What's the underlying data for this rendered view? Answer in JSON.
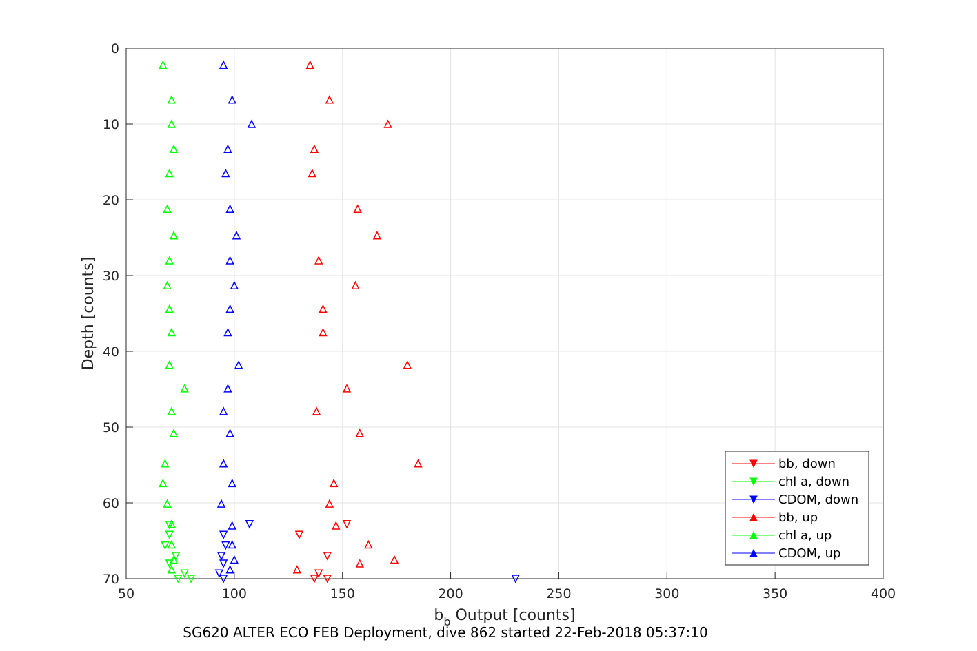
{
  "caption": "SG620 ALTER ECO FEB Deployment, dive 862 started 22-Feb-2018 05:37:10",
  "chart_data": {
    "type": "scatter",
    "xlabel_main": "b",
    "xlabel_sub": "b",
    "xlabel_rest": " Output [counts]",
    "ylabel": "Depth [counts]",
    "xlim": [
      50,
      400
    ],
    "ylim": [
      0,
      70
    ],
    "y_reversed": true,
    "grid": true,
    "legend_position": "bottom-right",
    "x_ticks": [
      "50",
      "100",
      "150",
      "200",
      "250",
      "300",
      "350",
      "400"
    ],
    "y_ticks": [
      "0",
      "10",
      "20",
      "30",
      "40",
      "50",
      "60",
      "70"
    ],
    "series": [
      {
        "name": "bb, down",
        "color": "#ff0000",
        "marker": "triangle-down",
        "points": [
          [
            152,
            62.8
          ],
          [
            130,
            64.2
          ],
          [
            143,
            67
          ],
          [
            139,
            69.3
          ],
          [
            137,
            70
          ],
          [
            143,
            70
          ]
        ]
      },
      {
        "name": "chl a, down",
        "color": "#00ff00",
        "marker": "triangle-down",
        "points": [
          [
            70,
            62.9
          ],
          [
            70,
            64.2
          ],
          [
            68,
            65.6
          ],
          [
            73,
            67
          ],
          [
            70,
            68
          ],
          [
            77,
            69.3
          ],
          [
            74,
            70
          ],
          [
            80,
            70
          ]
        ]
      },
      {
        "name": "CDOM, down",
        "color": "#0000ff",
        "marker": "triangle-down",
        "points": [
          [
            107,
            62.8
          ],
          [
            95,
            64.2
          ],
          [
            96,
            65.6
          ],
          [
            94,
            67
          ],
          [
            95,
            68
          ],
          [
            93,
            69.3
          ],
          [
            95,
            70
          ],
          [
            230,
            70
          ]
        ]
      },
      {
        "name": "bb, up",
        "color": "#ff0000",
        "marker": "triangle-up",
        "points": [
          [
            135,
            2.2
          ],
          [
            144,
            6.8
          ],
          [
            171,
            10
          ],
          [
            137,
            13.3
          ],
          [
            136,
            16.5
          ],
          [
            157,
            21.2
          ],
          [
            166,
            24.7
          ],
          [
            139,
            28
          ],
          [
            156,
            31.3
          ],
          [
            141,
            34.4
          ],
          [
            141,
            37.5
          ],
          [
            180,
            41.8
          ],
          [
            152,
            44.9
          ],
          [
            138,
            47.9
          ],
          [
            158,
            50.8
          ],
          [
            185,
            54.8
          ],
          [
            146,
            57.4
          ],
          [
            144,
            60.1
          ],
          [
            147,
            63
          ],
          [
            162,
            65.5
          ],
          [
            158,
            68
          ],
          [
            174,
            67.5
          ],
          [
            129,
            68.8
          ]
        ]
      },
      {
        "name": "chl a, up",
        "color": "#00ff00",
        "marker": "triangle-up",
        "points": [
          [
            67,
            2.2
          ],
          [
            71,
            6.8
          ],
          [
            71,
            10
          ],
          [
            72,
            13.3
          ],
          [
            70,
            16.5
          ],
          [
            69,
            21.2
          ],
          [
            72,
            24.7
          ],
          [
            70,
            28
          ],
          [
            69,
            31.3
          ],
          [
            70,
            34.4
          ],
          [
            71,
            37.5
          ],
          [
            70,
            41.8
          ],
          [
            77,
            44.9
          ],
          [
            71,
            47.9
          ],
          [
            72,
            50.8
          ],
          [
            68,
            54.8
          ],
          [
            67,
            57.4
          ],
          [
            69,
            60.1
          ],
          [
            71,
            62.8
          ],
          [
            71,
            65.5
          ],
          [
            72,
            67.5
          ],
          [
            71,
            68.8
          ]
        ]
      },
      {
        "name": "CDOM, up",
        "color": "#0000ff",
        "marker": "triangle-up",
        "points": [
          [
            95,
            2.2
          ],
          [
            99,
            6.8
          ],
          [
            108,
            10
          ],
          [
            97,
            13.3
          ],
          [
            96,
            16.5
          ],
          [
            98,
            21.2
          ],
          [
            101,
            24.7
          ],
          [
            98,
            28
          ],
          [
            100,
            31.3
          ],
          [
            98,
            34.4
          ],
          [
            97,
            37.5
          ],
          [
            102,
            41.8
          ],
          [
            97,
            44.9
          ],
          [
            95,
            47.9
          ],
          [
            98,
            50.8
          ],
          [
            95,
            54.8
          ],
          [
            99,
            57.4
          ],
          [
            94,
            60.1
          ],
          [
            99,
            63
          ],
          [
            99,
            65.5
          ],
          [
            100,
            67.5
          ],
          [
            98,
            68.8
          ]
        ]
      }
    ]
  }
}
